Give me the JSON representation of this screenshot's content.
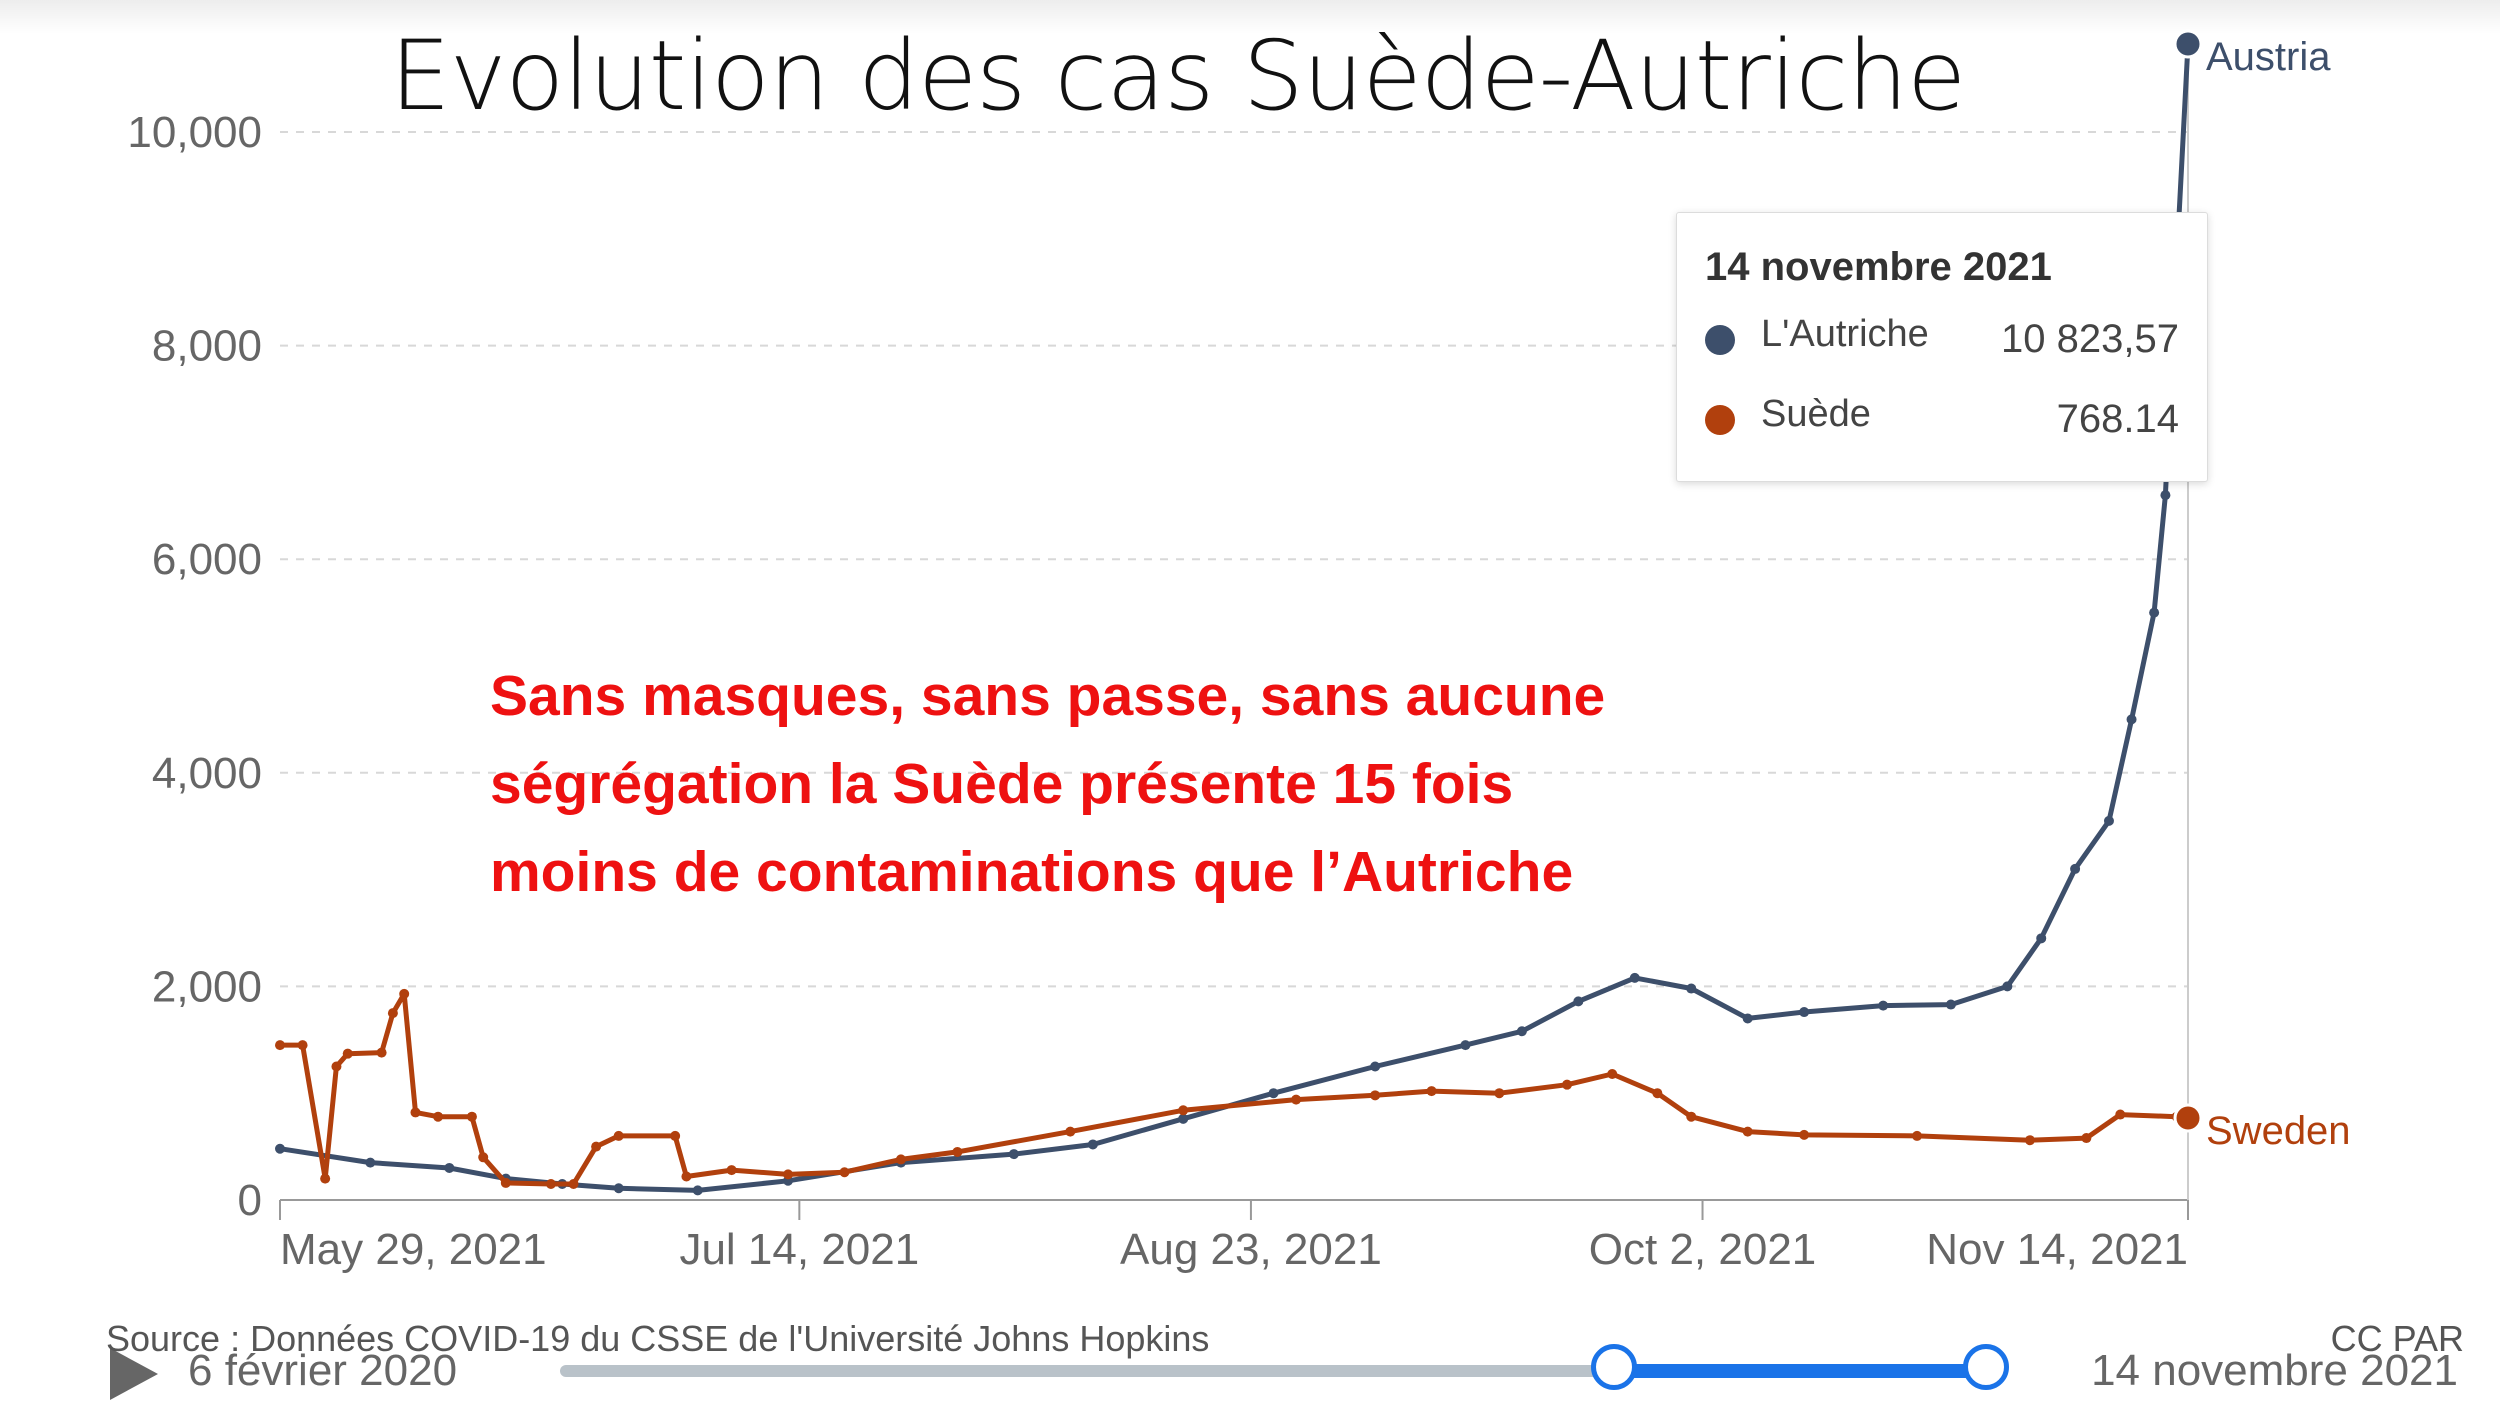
{
  "slide": {
    "title": "Evolution des cas Suède-Autriche",
    "annotation": [
      "Sans masques, sans passe, sans aucune",
      "ségrégation la Suède présente 15 fois",
      "moins de contaminations que l’Autriche"
    ]
  },
  "tooltip": {
    "date": "14 novembre 2021",
    "rows": [
      {
        "name": "L'Autriche",
        "value": "10 823,57",
        "color": "#3d4f6b"
      },
      {
        "name": "Suède",
        "value": "768.14",
        "color": "#b1400d"
      }
    ]
  },
  "footer": {
    "source": "Source : Données COVID-19 du CSSE de l'Université Johns Hopkins",
    "license": "CC PAR"
  },
  "timeline": {
    "start_label": "6 février 2020",
    "end_label": "14 novembre 2021",
    "range_start_fraction": 0.74,
    "range_end_fraction": 1.0
  },
  "chart_data": {
    "type": "line",
    "title": "",
    "xlabel": "",
    "ylabel": "",
    "grid": true,
    "x_range": [
      0,
      169
    ],
    "ylim": [
      0,
      10823.57
    ],
    "x_ticks": [
      {
        "x": 0,
        "label": "May 29, 2021"
      },
      {
        "x": 46,
        "label": "Jul 14, 2021"
      },
      {
        "x": 86,
        "label": "Aug 23, 2021"
      },
      {
        "x": 126,
        "label": "Oct 2, 2021"
      },
      {
        "x": 169,
        "label": "Nov 14, 2021"
      }
    ],
    "y_ticks": [
      {
        "value": 0,
        "label": "0"
      },
      {
        "value": 2000,
        "label": "2,000"
      },
      {
        "value": 4000,
        "label": "4,000"
      },
      {
        "value": 6000,
        "label": "6,000"
      },
      {
        "value": 8000,
        "label": "8,000"
      },
      {
        "value": 10000,
        "label": "10,000"
      }
    ],
    "series": [
      {
        "name": "Austria",
        "color": "#3d4f6b",
        "points": [
          [
            0,
            480
          ],
          [
            8,
            350
          ],
          [
            15,
            300
          ],
          [
            20,
            200
          ],
          [
            25,
            150
          ],
          [
            30,
            110
          ],
          [
            37,
            90
          ],
          [
            45,
            180
          ],
          [
            55,
            350
          ],
          [
            65,
            430
          ],
          [
            72,
            520
          ],
          [
            80,
            760
          ],
          [
            88,
            1000
          ],
          [
            97,
            1250
          ],
          [
            105,
            1450
          ],
          [
            110,
            1580
          ],
          [
            115,
            1860
          ],
          [
            120,
            2080
          ],
          [
            125,
            1980
          ],
          [
            130,
            1700
          ],
          [
            135,
            1760
          ],
          [
            142,
            1820
          ],
          [
            148,
            1830
          ],
          [
            153,
            2000
          ],
          [
            156,
            2450
          ],
          [
            159,
            3100
          ],
          [
            162,
            3550
          ],
          [
            164,
            4500
          ],
          [
            166,
            5500
          ],
          [
            167,
            6600
          ],
          [
            168,
            8800
          ],
          [
            169,
            10823.57
          ]
        ]
      },
      {
        "name": "Sweden",
        "color": "#b1400d",
        "points": [
          [
            0,
            1450
          ],
          [
            2,
            1450
          ],
          [
            4,
            200
          ],
          [
            5,
            1250
          ],
          [
            6,
            1370
          ],
          [
            9,
            1380
          ],
          [
            10,
            1750
          ],
          [
            11,
            1930
          ],
          [
            12,
            820
          ],
          [
            14,
            780
          ],
          [
            17,
            780
          ],
          [
            18,
            400
          ],
          [
            20,
            160
          ],
          [
            24,
            150
          ],
          [
            26,
            150
          ],
          [
            28,
            500
          ],
          [
            30,
            600
          ],
          [
            35,
            600
          ],
          [
            36,
            220
          ],
          [
            40,
            280
          ],
          [
            45,
            240
          ],
          [
            50,
            260
          ],
          [
            55,
            380
          ],
          [
            60,
            450
          ],
          [
            70,
            640
          ],
          [
            80,
            840
          ],
          [
            90,
            940
          ],
          [
            97,
            980
          ],
          [
            102,
            1020
          ],
          [
            108,
            1000
          ],
          [
            114,
            1080
          ],
          [
            118,
            1180
          ],
          [
            122,
            1000
          ],
          [
            125,
            780
          ],
          [
            130,
            640
          ],
          [
            135,
            610
          ],
          [
            145,
            600
          ],
          [
            155,
            560
          ],
          [
            160,
            580
          ],
          [
            163,
            800
          ],
          [
            168,
            780
          ],
          [
            169,
            768.14
          ]
        ]
      }
    ]
  }
}
